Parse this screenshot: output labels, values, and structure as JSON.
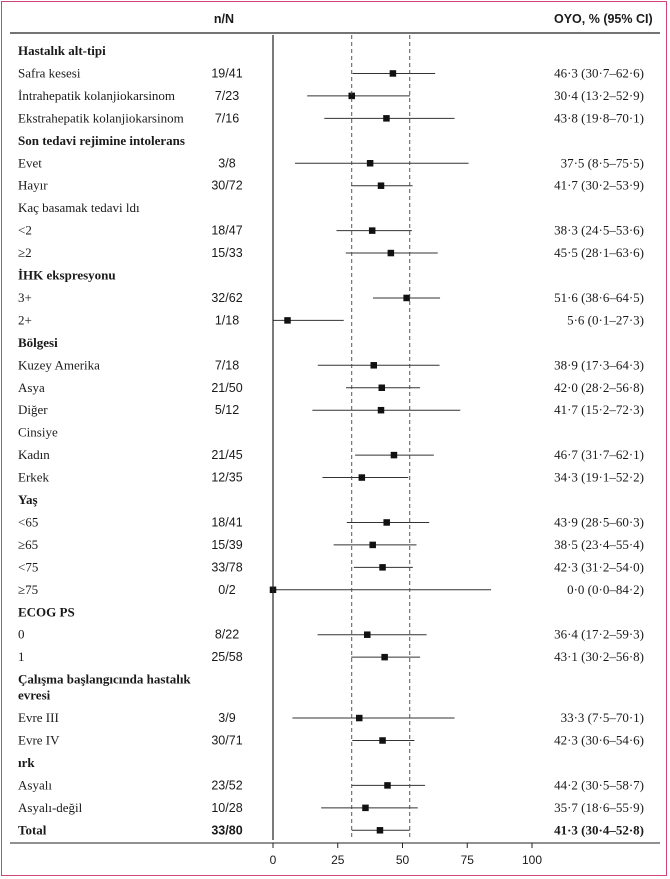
{
  "header": {
    "nN": "n/N",
    "oyo": "OYO, % (95% CI)"
  },
  "chart_data": {
    "type": "forest",
    "x_ticks": [
      0,
      25,
      50,
      75,
      100
    ],
    "xlim": [
      0,
      100
    ],
    "reference_lines": [
      30.4,
      52.8
    ],
    "rows": [
      {
        "label": "Hastalık alt-tipi",
        "kind": "header"
      },
      {
        "label": "Safra kesesi",
        "nN": "19/41",
        "est": 46.3,
        "lo": 30.7,
        "hi": 62.6,
        "text": "46·3 (30·7–62·6)"
      },
      {
        "label": "İntrahepatik kolanjiokarsinom",
        "nN": "7/23",
        "est": 30.4,
        "lo": 13.2,
        "hi": 52.9,
        "text": "30·4 (13·2–52·9)"
      },
      {
        "label": "Ekstrahepatik kolanjiokarsinom",
        "nN": "7/16",
        "est": 43.8,
        "lo": 19.8,
        "hi": 70.1,
        "text": "43·8 (19·8–70·1)"
      },
      {
        "label": "Son tedavi rejimine intolerans",
        "kind": "header"
      },
      {
        "label": "Evet",
        "nN": "3/8",
        "est": 37.5,
        "lo": 8.5,
        "hi": 75.5,
        "text": "37·5 (8·5–75·5)"
      },
      {
        "label": "Hayır",
        "nN": "30/72",
        "est": 41.7,
        "lo": 30.2,
        "hi": 53.9,
        "text": "41·7 (30·2–53·9)"
      },
      {
        "label": "Kaç basamak tedavi ldı",
        "kind": "subheader"
      },
      {
        "label": "<2",
        "nN": "18/47",
        "est": 38.3,
        "lo": 24.5,
        "hi": 53.6,
        "text": "38·3 (24·5–53·6)"
      },
      {
        "label": "≥2",
        "nN": "15/33",
        "est": 45.5,
        "lo": 28.1,
        "hi": 63.6,
        "text": "45·5 (28·1–63·6)"
      },
      {
        "label": "İHK ekspresyonu",
        "kind": "header"
      },
      {
        "label": "3+",
        "nN": "32/62",
        "est": 51.6,
        "lo": 38.6,
        "hi": 64.5,
        "text": "51·6 (38·6–64·5)"
      },
      {
        "label": "2+",
        "nN": "1/18",
        "est": 5.6,
        "lo": 0.1,
        "hi": 27.3,
        "text": "5·6 (0·1–27·3)"
      },
      {
        "label": "Bölgesi",
        "kind": "header"
      },
      {
        "label": "Kuzey Amerika",
        "nN": "7/18",
        "est": 38.9,
        "lo": 17.3,
        "hi": 64.3,
        "text": "38·9 (17·3–64·3)"
      },
      {
        "label": "Asya",
        "nN": "21/50",
        "est": 42.0,
        "lo": 28.2,
        "hi": 56.8,
        "text": "42·0 (28·2–56·8)"
      },
      {
        "label": "Diğer",
        "nN": "5/12",
        "est": 41.7,
        "lo": 15.2,
        "hi": 72.3,
        "text": "41·7 (15·2–72·3)"
      },
      {
        "label": "Cinsiye",
        "kind": "subheader"
      },
      {
        "label": "Kadın",
        "nN": "21/45",
        "est": 46.7,
        "lo": 31.7,
        "hi": 62.1,
        "text": "46·7 (31·7–62·1)"
      },
      {
        "label": "Erkek",
        "nN": "12/35",
        "est": 34.3,
        "lo": 19.1,
        "hi": 52.2,
        "text": "34·3 (19·1–52·2)"
      },
      {
        "label": "Yaş",
        "kind": "header"
      },
      {
        "label": "<65",
        "nN": "18/41",
        "est": 43.9,
        "lo": 28.5,
        "hi": 60.3,
        "text": "43·9 (28·5–60·3)"
      },
      {
        "label": "≥65",
        "nN": "15/39",
        "est": 38.5,
        "lo": 23.4,
        "hi": 55.4,
        "text": "38·5 (23·4–55·4)"
      },
      {
        "label": "<75",
        "nN": "33/78",
        "est": 42.3,
        "lo": 31.2,
        "hi": 54.0,
        "text": "42·3 (31·2–54·0)"
      },
      {
        "label": "≥75",
        "nN": "0/2",
        "est": 0.0,
        "lo": 0.0,
        "hi": 84.2,
        "text": "0·0 (0·0–84·2)"
      },
      {
        "label": "ECOG PS",
        "kind": "header"
      },
      {
        "label": "0",
        "nN": "8/22",
        "est": 36.4,
        "lo": 17.2,
        "hi": 59.3,
        "text": "36·4 (17·2–59·3)"
      },
      {
        "label": "1",
        "nN": "25/58",
        "est": 43.1,
        "lo": 30.2,
        "hi": 56.8,
        "text": "43·1 (30·2–56·8)"
      },
      {
        "label": "Çalışma başlangıcında hastalık",
        "label2": "evresi",
        "kind": "header2"
      },
      {
        "label": "Evre III",
        "nN": "3/9",
        "est": 33.3,
        "lo": 7.5,
        "hi": 70.1,
        "text": "33·3 (7·5–70·1)"
      },
      {
        "label": "Evre IV",
        "nN": "30/71",
        "est": 42.3,
        "lo": 30.6,
        "hi": 54.6,
        "text": "42·3 (30·6–54·6)"
      },
      {
        "label": "ırk",
        "kind": "header"
      },
      {
        "label": "Asyalı",
        "nN": "23/52",
        "est": 44.2,
        "lo": 30.5,
        "hi": 58.7,
        "text": "44·2 (30·5–58·7)"
      },
      {
        "label": "Asyalı-değil",
        "nN": "10/28",
        "est": 35.7,
        "lo": 18.6,
        "hi": 55.9,
        "text": "35·7 (18·6–55·9)"
      },
      {
        "label": "Total",
        "nN": "33/80",
        "est": 41.3,
        "lo": 30.4,
        "hi": 52.8,
        "text": "41·3 (30·4–52·8)",
        "kind": "total"
      }
    ]
  }
}
